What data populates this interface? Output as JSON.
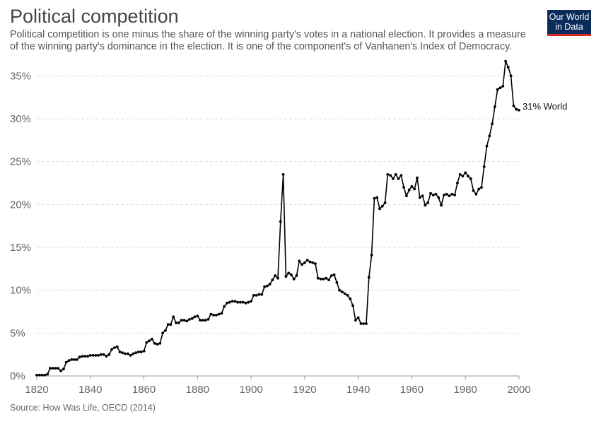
{
  "header": {
    "title": "Political competition",
    "subtitle": "Political competition is one minus the share of the winning party's votes in a national election. It provides a measure of the winning party's dominance in the election. It is one of the component's of Vanhanen's Index of Democracy."
  },
  "logo": {
    "line1": "Our World",
    "line2": "in Data",
    "bg_color": "#0a2c5a",
    "accent_color": "#d42b21"
  },
  "footer": {
    "source": "Source: How Was Life, OECD (2014)"
  },
  "chart_data": {
    "type": "line",
    "title": "Political competition",
    "xlabel": "",
    "ylabel": "",
    "xlim": [
      1820,
      2000
    ],
    "ylim": [
      0,
      37.5
    ],
    "x_ticks": [
      "1820",
      "1840",
      "1860",
      "1880",
      "1900",
      "1920",
      "1940",
      "1960",
      "1980",
      "2000"
    ],
    "y_ticks": [
      "0%",
      "5%",
      "10%",
      "15%",
      "20%",
      "25%",
      "30%",
      "35%"
    ],
    "grid": "horizontal dashed",
    "line_color": "#000000",
    "end_label": "31% World",
    "series": [
      {
        "name": "World",
        "points": [
          [
            1820,
            0.1
          ],
          [
            1821,
            0.1
          ],
          [
            1822,
            0.1
          ],
          [
            1823,
            0.1
          ],
          [
            1824,
            0.2
          ],
          [
            1825,
            0.9
          ],
          [
            1826,
            0.9
          ],
          [
            1827,
            0.9
          ],
          [
            1828,
            0.9
          ],
          [
            1829,
            0.6
          ],
          [
            1830,
            0.8
          ],
          [
            1831,
            1.6
          ],
          [
            1832,
            1.8
          ],
          [
            1833,
            1.9
          ],
          [
            1834,
            1.9
          ],
          [
            1835,
            1.9
          ],
          [
            1836,
            2.2
          ],
          [
            1837,
            2.3
          ],
          [
            1838,
            2.3
          ],
          [
            1839,
            2.3
          ],
          [
            1840,
            2.4
          ],
          [
            1841,
            2.4
          ],
          [
            1842,
            2.4
          ],
          [
            1843,
            2.4
          ],
          [
            1844,
            2.5
          ],
          [
            1845,
            2.5
          ],
          [
            1846,
            2.3
          ],
          [
            1847,
            2.5
          ],
          [
            1848,
            3.1
          ],
          [
            1849,
            3.3
          ],
          [
            1850,
            3.4
          ],
          [
            1851,
            2.8
          ],
          [
            1852,
            2.7
          ],
          [
            1853,
            2.6
          ],
          [
            1854,
            2.6
          ],
          [
            1855,
            2.4
          ],
          [
            1856,
            2.6
          ],
          [
            1857,
            2.7
          ],
          [
            1858,
            2.8
          ],
          [
            1859,
            2.8
          ],
          [
            1860,
            2.9
          ],
          [
            1861,
            3.9
          ],
          [
            1862,
            4.1
          ],
          [
            1863,
            4.3
          ],
          [
            1864,
            3.8
          ],
          [
            1865,
            3.7
          ],
          [
            1866,
            3.8
          ],
          [
            1867,
            5.0
          ],
          [
            1868,
            5.3
          ],
          [
            1869,
            6.0
          ],
          [
            1870,
            6.0
          ],
          [
            1871,
            6.9
          ],
          [
            1872,
            6.2
          ],
          [
            1873,
            6.2
          ],
          [
            1874,
            6.5
          ],
          [
            1875,
            6.5
          ],
          [
            1876,
            6.4
          ],
          [
            1877,
            6.6
          ],
          [
            1878,
            6.7
          ],
          [
            1879,
            6.9
          ],
          [
            1880,
            7.0
          ],
          [
            1881,
            6.5
          ],
          [
            1882,
            6.5
          ],
          [
            1883,
            6.5
          ],
          [
            1884,
            6.6
          ],
          [
            1885,
            7.2
          ],
          [
            1886,
            7.1
          ],
          [
            1887,
            7.1
          ],
          [
            1888,
            7.2
          ],
          [
            1889,
            7.3
          ],
          [
            1890,
            8.1
          ],
          [
            1891,
            8.5
          ],
          [
            1892,
            8.6
          ],
          [
            1893,
            8.7
          ],
          [
            1894,
            8.7
          ],
          [
            1895,
            8.6
          ],
          [
            1896,
            8.6
          ],
          [
            1897,
            8.6
          ],
          [
            1898,
            8.5
          ],
          [
            1899,
            8.6
          ],
          [
            1900,
            8.7
          ],
          [
            1901,
            9.4
          ],
          [
            1902,
            9.4
          ],
          [
            1903,
            9.5
          ],
          [
            1904,
            9.5
          ],
          [
            1905,
            10.4
          ],
          [
            1906,
            10.5
          ],
          [
            1907,
            10.7
          ],
          [
            1908,
            11.2
          ],
          [
            1909,
            11.7
          ],
          [
            1910,
            11.4
          ],
          [
            1911,
            18.0
          ],
          [
            1912,
            23.5
          ],
          [
            1913,
            11.6
          ],
          [
            1914,
            12.0
          ],
          [
            1915,
            11.8
          ],
          [
            1916,
            11.3
          ],
          [
            1917,
            11.7
          ],
          [
            1918,
            13.4
          ],
          [
            1919,
            13.0
          ],
          [
            1920,
            13.2
          ],
          [
            1921,
            13.5
          ],
          [
            1922,
            13.3
          ],
          [
            1923,
            13.2
          ],
          [
            1924,
            13.1
          ],
          [
            1925,
            11.4
          ],
          [
            1926,
            11.3
          ],
          [
            1927,
            11.3
          ],
          [
            1928,
            11.4
          ],
          [
            1929,
            11.2
          ],
          [
            1930,
            11.7
          ],
          [
            1931,
            11.8
          ],
          [
            1932,
            10.9
          ],
          [
            1933,
            10.0
          ],
          [
            1934,
            9.8
          ],
          [
            1935,
            9.6
          ],
          [
            1936,
            9.4
          ],
          [
            1937,
            9.0
          ],
          [
            1938,
            8.2
          ],
          [
            1939,
            6.5
          ],
          [
            1940,
            6.8
          ],
          [
            1941,
            6.1
          ],
          [
            1942,
            6.1
          ],
          [
            1943,
            6.1
          ],
          [
            1944,
            11.5
          ],
          [
            1945,
            14.1
          ],
          [
            1946,
            20.7
          ],
          [
            1947,
            20.8
          ],
          [
            1948,
            19.5
          ],
          [
            1949,
            19.8
          ],
          [
            1950,
            20.2
          ],
          [
            1951,
            23.5
          ],
          [
            1952,
            23.4
          ],
          [
            1953,
            23.0
          ],
          [
            1954,
            23.5
          ],
          [
            1955,
            23.0
          ],
          [
            1956,
            23.4
          ],
          [
            1957,
            22.0
          ],
          [
            1958,
            21.0
          ],
          [
            1959,
            21.7
          ],
          [
            1960,
            22.1
          ],
          [
            1961,
            21.8
          ],
          [
            1962,
            23.1
          ],
          [
            1963,
            20.8
          ],
          [
            1964,
            21.0
          ],
          [
            1965,
            19.9
          ],
          [
            1966,
            20.2
          ],
          [
            1967,
            21.3
          ],
          [
            1968,
            21.1
          ],
          [
            1969,
            21.2
          ],
          [
            1970,
            20.8
          ],
          [
            1971,
            19.9
          ],
          [
            1972,
            21.1
          ],
          [
            1973,
            21.2
          ],
          [
            1974,
            21.0
          ],
          [
            1975,
            21.2
          ],
          [
            1976,
            21.1
          ],
          [
            1977,
            22.5
          ],
          [
            1978,
            23.5
          ],
          [
            1979,
            23.3
          ],
          [
            1980,
            23.7
          ],
          [
            1981,
            23.3
          ],
          [
            1982,
            23.0
          ],
          [
            1983,
            21.6
          ],
          [
            1984,
            21.2
          ],
          [
            1985,
            21.8
          ],
          [
            1986,
            22.0
          ],
          [
            1987,
            24.4
          ],
          [
            1988,
            26.8
          ],
          [
            1989,
            28.0
          ],
          [
            1990,
            29.4
          ],
          [
            1991,
            31.4
          ],
          [
            1992,
            33.4
          ],
          [
            1993,
            33.6
          ],
          [
            1994,
            33.8
          ],
          [
            1995,
            36.7
          ],
          [
            1996,
            36.0
          ],
          [
            1997,
            35.0
          ],
          [
            1998,
            31.5
          ],
          [
            1999,
            31.1
          ],
          [
            2000,
            31.0
          ]
        ]
      }
    ]
  }
}
